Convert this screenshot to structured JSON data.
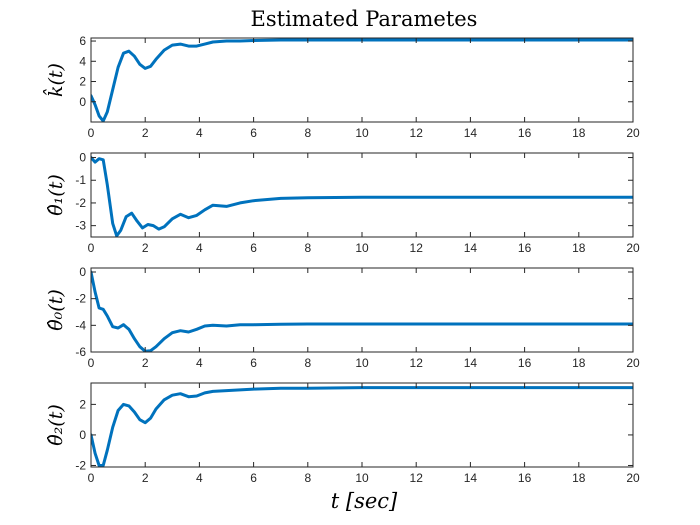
{
  "figure": {
    "title": "Estimated Parametes",
    "xlabel": "t [sec]"
  },
  "line_color": "#0072BD",
  "chart_data": [
    {
      "type": "line",
      "ylabel": "k̂(t)",
      "xlim": [
        0,
        20
      ],
      "ylim": [
        -2,
        6.3
      ],
      "xticks": [
        0,
        2,
        4,
        6,
        8,
        10,
        12,
        14,
        16,
        18,
        20
      ],
      "yticks": [
        0,
        2,
        4,
        6
      ],
      "series": [
        {
          "x": [
            0,
            0.15,
            0.3,
            0.45,
            0.6,
            0.8,
            1.0,
            1.2,
            1.4,
            1.6,
            1.8,
            2.0,
            2.2,
            2.4,
            2.7,
            3.0,
            3.3,
            3.6,
            3.9,
            4.2,
            4.5,
            5.0,
            5.5,
            6.0,
            7,
            8,
            10,
            12,
            14,
            16,
            18,
            20
          ],
          "y": [
            0.6,
            -0.3,
            -1.4,
            -1.9,
            -1.0,
            1.2,
            3.4,
            4.8,
            5.0,
            4.5,
            3.7,
            3.3,
            3.5,
            4.2,
            5.1,
            5.6,
            5.7,
            5.5,
            5.5,
            5.7,
            5.9,
            6.0,
            6.0,
            6.05,
            6.1,
            6.1,
            6.1,
            6.1,
            6.1,
            6.1,
            6.1,
            6.1
          ]
        }
      ]
    },
    {
      "type": "line",
      "ylabel": "θ̂₁(t)",
      "xlim": [
        0,
        20
      ],
      "ylim": [
        -3.5,
        0.2
      ],
      "xticks": [
        0,
        2,
        4,
        6,
        8,
        10,
        12,
        14,
        16,
        18,
        20
      ],
      "yticks": [
        -3,
        -2,
        -1,
        0
      ],
      "series": [
        {
          "x": [
            0,
            0.15,
            0.3,
            0.45,
            0.6,
            0.8,
            0.95,
            1.1,
            1.3,
            1.5,
            1.7,
            1.9,
            2.1,
            2.3,
            2.5,
            2.7,
            3.0,
            3.3,
            3.6,
            3.9,
            4.2,
            4.5,
            5.0,
            5.5,
            6.0,
            7,
            8,
            10,
            12,
            14,
            16,
            18,
            20
          ],
          "y": [
            0.0,
            -0.2,
            -0.05,
            -0.1,
            -1.2,
            -2.9,
            -3.45,
            -3.2,
            -2.6,
            -2.45,
            -2.8,
            -3.1,
            -2.95,
            -3.0,
            -3.15,
            -3.05,
            -2.7,
            -2.5,
            -2.65,
            -2.55,
            -2.3,
            -2.1,
            -2.15,
            -2.0,
            -1.9,
            -1.8,
            -1.77,
            -1.75,
            -1.75,
            -1.75,
            -1.75,
            -1.75,
            -1.75
          ]
        }
      ]
    },
    {
      "type": "line",
      "ylabel": "θ̂₀(t)",
      "xlim": [
        0,
        20
      ],
      "ylim": [
        -6,
        0.3
      ],
      "xticks": [
        0,
        2,
        4,
        6,
        8,
        10,
        12,
        14,
        16,
        18,
        20
      ],
      "yticks": [
        -6,
        -4,
        -2,
        0
      ],
      "series": [
        {
          "x": [
            0,
            0.15,
            0.3,
            0.45,
            0.6,
            0.8,
            1.0,
            1.2,
            1.4,
            1.6,
            1.8,
            2.0,
            2.2,
            2.4,
            2.7,
            3.0,
            3.3,
            3.6,
            3.9,
            4.2,
            4.5,
            5.0,
            5.5,
            6.0,
            7,
            8,
            10,
            12,
            14,
            16,
            18,
            20
          ],
          "y": [
            0.0,
            -1.5,
            -2.7,
            -2.8,
            -3.3,
            -4.1,
            -4.2,
            -3.95,
            -4.3,
            -5.0,
            -5.6,
            -5.95,
            -5.9,
            -5.6,
            -5.0,
            -4.55,
            -4.4,
            -4.5,
            -4.3,
            -4.05,
            -4.0,
            -4.05,
            -3.95,
            -3.95,
            -3.92,
            -3.9,
            -3.9,
            -3.9,
            -3.9,
            -3.9,
            -3.9,
            -3.9
          ]
        }
      ]
    },
    {
      "type": "line",
      "ylabel": "θ̂₂(t)",
      "xlim": [
        0,
        20
      ],
      "ylim": [
        -2.1,
        3.4
      ],
      "xticks": [
        0,
        2,
        4,
        6,
        8,
        10,
        12,
        14,
        16,
        18,
        20
      ],
      "yticks": [
        -2,
        0,
        2
      ],
      "series": [
        {
          "x": [
            0,
            0.15,
            0.3,
            0.45,
            0.6,
            0.8,
            1.0,
            1.2,
            1.4,
            1.6,
            1.8,
            2.0,
            2.2,
            2.4,
            2.7,
            3.0,
            3.3,
            3.6,
            3.9,
            4.2,
            4.5,
            5.0,
            5.5,
            6.0,
            7,
            8,
            10,
            12,
            14,
            16,
            18,
            20
          ],
          "y": [
            0.0,
            -1.2,
            -2.0,
            -2.0,
            -1.0,
            0.5,
            1.6,
            2.0,
            1.9,
            1.5,
            1.0,
            0.8,
            1.1,
            1.7,
            2.3,
            2.6,
            2.7,
            2.5,
            2.55,
            2.75,
            2.85,
            2.9,
            2.95,
            3.0,
            3.05,
            3.05,
            3.1,
            3.1,
            3.1,
            3.1,
            3.1,
            3.1
          ]
        }
      ]
    }
  ]
}
